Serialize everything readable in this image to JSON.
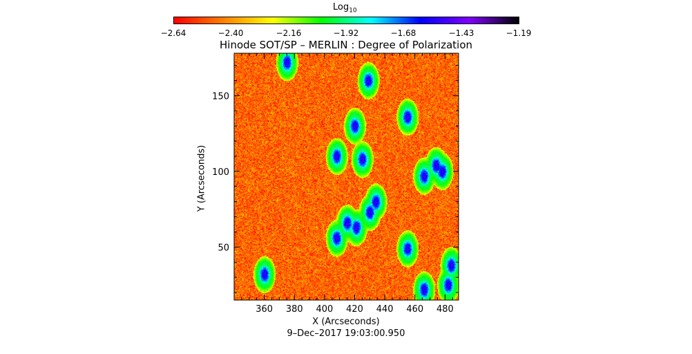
{
  "chart_data": {
    "type": "heatmap",
    "title": "Hinode SOT/SP – MERLIN : Degree of Polarization",
    "xlabel": "X (Arcseconds)",
    "ylabel": "Y (Arcseconds)",
    "xlim": [
      340,
      489
    ],
    "ylim": [
      15,
      178
    ],
    "xticks": [
      "360",
      "380",
      "400",
      "420",
      "440",
      "460",
      "480"
    ],
    "yticks": [
      "50",
      "100",
      "150"
    ],
    "colorbar": {
      "label_main": "Log",
      "label_sub": "10",
      "ticks": [
        "−2.64",
        "−2.40",
        "−2.16",
        "−1.92",
        "−1.68",
        "−1.43",
        "−1.19"
      ],
      "range": [
        -2.64,
        -1.19
      ],
      "colormap": [
        "#ff0000",
        "#ff8000",
        "#ffff00",
        "#00ff00",
        "#00ffff",
        "#0000ff",
        "#8000ff",
        "#000000"
      ]
    },
    "background_level": -2.48,
    "strong_regions": [
      {
        "x": 375,
        "y": 172
      },
      {
        "x": 429,
        "y": 160
      },
      {
        "x": 455,
        "y": 136
      },
      {
        "x": 420,
        "y": 130
      },
      {
        "x": 408,
        "y": 110
      },
      {
        "x": 425,
        "y": 108
      },
      {
        "x": 474,
        "y": 104
      },
      {
        "x": 478,
        "y": 100
      },
      {
        "x": 466,
        "y": 97
      },
      {
        "x": 434,
        "y": 80
      },
      {
        "x": 430,
        "y": 73
      },
      {
        "x": 415,
        "y": 66
      },
      {
        "x": 421,
        "y": 63
      },
      {
        "x": 408,
        "y": 56
      },
      {
        "x": 455,
        "y": 49
      },
      {
        "x": 484,
        "y": 38
      },
      {
        "x": 482,
        "y": 25
      },
      {
        "x": 466,
        "y": 22
      },
      {
        "x": 360,
        "y": 32
      }
    ]
  },
  "timestamp": "9–Dec–2017 19:03:00.950"
}
